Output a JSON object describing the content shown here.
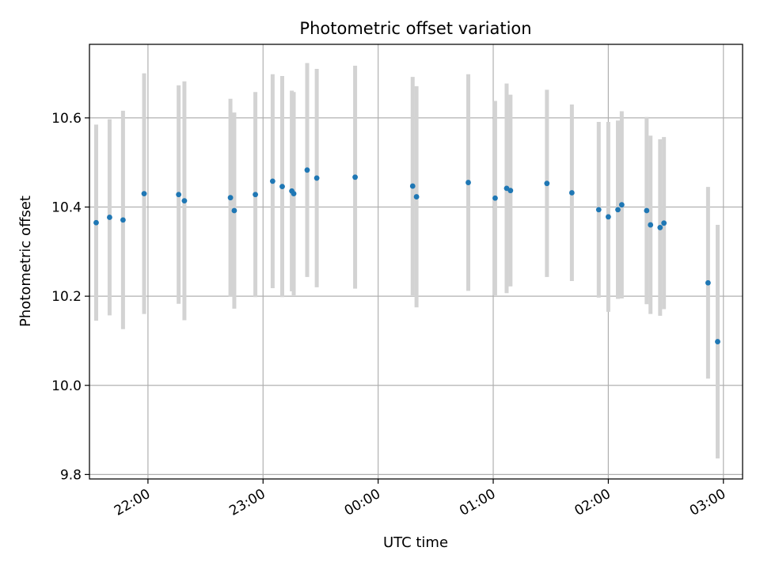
{
  "chart_data": {
    "type": "scatter",
    "title": "Photometric offset variation",
    "xlabel": "UTC time",
    "ylabel": "Photometric offset",
    "x_axis_kind": "time",
    "x_tick_labels": [
      "22:00",
      "23:00",
      "00:00",
      "01:00",
      "02:00",
      "03:00"
    ],
    "y_tick_values": [
      9.8,
      10.0,
      10.2,
      10.4,
      10.6
    ],
    "y_tick_labels": [
      "9.8",
      "10.0",
      "10.2",
      "10.4",
      "10.6"
    ],
    "xlim": [
      "21:33",
      "03:03"
    ],
    "ylim": [
      9.79,
      10.765
    ],
    "grid": true,
    "marker_color": "#1f77b4",
    "errorbar_color": "#d3d3d3",
    "series": [
      {
        "points": [
          {
            "x": "21:33",
            "y": 10.365,
            "yerr": 0.22
          },
          {
            "x": "21:40",
            "y": 10.377,
            "yerr": 0.22
          },
          {
            "x": "21:47",
            "y": 10.371,
            "yerr": 0.245
          },
          {
            "x": "21:58",
            "y": 10.43,
            "yerr": 0.27
          },
          {
            "x": "22:16",
            "y": 10.428,
            "yerr": 0.245
          },
          {
            "x": "22:19",
            "y": 10.414,
            "yerr": 0.268
          },
          {
            "x": "22:43",
            "y": 10.421,
            "yerr": 0.222
          },
          {
            "x": "22:45",
            "y": 10.392,
            "yerr": 0.22
          },
          {
            "x": "22:56",
            "y": 10.428,
            "yerr": 0.23
          },
          {
            "x": "23:05",
            "y": 10.458,
            "yerr": 0.24
          },
          {
            "x": "23:10",
            "y": 10.446,
            "yerr": 0.248
          },
          {
            "x": "23:15",
            "y": 10.436,
            "yerr": 0.225
          },
          {
            "x": "23:16",
            "y": 10.43,
            "yerr": 0.228
          },
          {
            "x": "23:23",
            "y": 10.483,
            "yerr": 0.24
          },
          {
            "x": "23:28",
            "y": 10.465,
            "yerr": 0.245
          },
          {
            "x": "23:48",
            "y": 10.467,
            "yerr": 0.25
          },
          {
            "x": "00:18",
            "y": 10.447,
            "yerr": 0.245
          },
          {
            "x": "00:20",
            "y": 10.423,
            "yerr": 0.248
          },
          {
            "x": "00:47",
            "y": 10.455,
            "yerr": 0.243
          },
          {
            "x": "01:01",
            "y": 10.42,
            "yerr": 0.218
          },
          {
            "x": "01:07",
            "y": 10.442,
            "yerr": 0.235
          },
          {
            "x": "01:09",
            "y": 10.437,
            "yerr": 0.215
          },
          {
            "x": "01:28",
            "y": 10.453,
            "yerr": 0.21
          },
          {
            "x": "01:41",
            "y": 10.432,
            "yerr": 0.198
          },
          {
            "x": "01:55",
            "y": 10.394,
            "yerr": 0.197
          },
          {
            "x": "02:00",
            "y": 10.378,
            "yerr": 0.213
          },
          {
            "x": "02:05",
            "y": 10.394,
            "yerr": 0.2
          },
          {
            "x": "02:07",
            "y": 10.405,
            "yerr": 0.21
          },
          {
            "x": "02:20",
            "y": 10.392,
            "yerr": 0.21
          },
          {
            "x": "02:22",
            "y": 10.36,
            "yerr": 0.2
          },
          {
            "x": "02:27",
            "y": 10.354,
            "yerr": 0.198
          },
          {
            "x": "02:29",
            "y": 10.364,
            "yerr": 0.193
          },
          {
            "x": "02:52",
            "y": 10.23,
            "yerr": 0.215
          },
          {
            "x": "02:57",
            "y": 10.098,
            "yerr": 0.262
          }
        ]
      }
    ]
  }
}
